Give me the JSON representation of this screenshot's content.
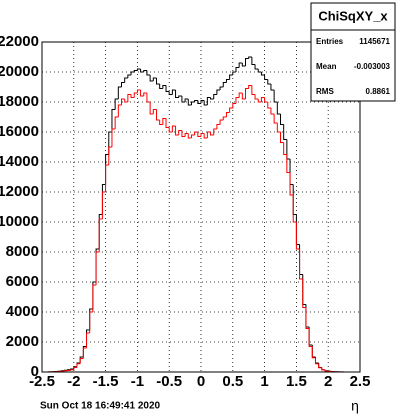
{
  "chart_data": {
    "type": "histogram",
    "title": "ChiSqXY_x",
    "stats": [
      {
        "label": "Entries",
        "value": "1145671"
      },
      {
        "label": "Mean",
        "value": "-0.003003"
      },
      {
        "label": "RMS",
        "value": "0.8861"
      }
    ],
    "x_label": "η",
    "timestamp": "Sun Oct 18 16:49:41 2020",
    "bins": [
      -2.5,
      -2.45,
      -2.4,
      -2.35,
      -2.3,
      -2.25,
      -2.2,
      -2.15,
      -2.1,
      -2.05,
      -2.0,
      -1.95,
      -1.9,
      -1.85,
      -1.8,
      -1.75,
      -1.7,
      -1.65,
      -1.6,
      -1.55,
      -1.5,
      -1.45,
      -1.4,
      -1.35,
      -1.3,
      -1.25,
      -1.2,
      -1.15,
      -1.1,
      -1.05,
      -1.0,
      -0.95,
      -0.9,
      -0.85,
      -0.8,
      -0.75,
      -0.7,
      -0.65,
      -0.6,
      -0.55,
      -0.5,
      -0.45,
      -0.4,
      -0.35,
      -0.3,
      -0.25,
      -0.2,
      -0.15,
      -0.1,
      -0.05,
      0,
      0.05,
      0.1,
      0.15,
      0.2,
      0.25,
      0.3,
      0.35,
      0.4,
      0.45,
      0.5,
      0.55,
      0.6,
      0.65,
      0.7,
      0.75,
      0.8,
      0.85,
      0.9,
      0.95,
      1.0,
      1.05,
      1.1,
      1.15,
      1.2,
      1.25,
      1.3,
      1.35,
      1.4,
      1.45,
      1.5,
      1.55,
      1.6,
      1.65,
      1.7,
      1.75,
      1.8,
      1.85,
      1.9,
      1.95,
      2.0,
      2.05,
      2.1,
      2.15,
      2.2,
      2.25,
      2.3,
      2.35,
      2.4,
      2.45,
      2.5
    ],
    "series": [
      {
        "color": "#000000",
        "values": [
          0,
          0,
          10,
          20,
          30,
          50,
          80,
          120,
          150,
          200,
          350,
          600,
          1000,
          1700,
          2800,
          4200,
          6000,
          8200,
          10500,
          12500,
          14500,
          16000,
          17500,
          18200,
          19000,
          19300,
          19600,
          19800,
          20000,
          20100,
          20200,
          20000,
          20100,
          19800,
          19400,
          19600,
          19200,
          18900,
          19100,
          18700,
          18500,
          18800,
          18300,
          18400,
          18000,
          18200,
          17800,
          18000,
          18100,
          17900,
          18100,
          17800,
          18300,
          18200,
          18500,
          18800,
          19000,
          19300,
          19500,
          19800,
          20000,
          20300,
          20600,
          20400,
          20900,
          21000,
          20500,
          20200,
          20000,
          19800,
          19500,
          19200,
          18800,
          18000,
          17200,
          16500,
          15500,
          14200,
          12500,
          10500,
          8500,
          6500,
          4500,
          3000,
          1800,
          1000,
          600,
          300,
          150,
          80,
          50,
          30,
          20,
          10,
          5,
          0,
          0,
          0,
          0,
          0
        ]
      },
      {
        "color": "#ff0000",
        "values": [
          0,
          0,
          5,
          10,
          20,
          30,
          50,
          80,
          100,
          150,
          300,
          550,
          900,
          1600,
          2600,
          4000,
          5800,
          8000,
          10200,
          12000,
          13800,
          15000,
          16200,
          17000,
          17800,
          18200,
          18000,
          18500,
          18300,
          18600,
          18800,
          18400,
          18600,
          18000,
          17200,
          17500,
          16800,
          16500,
          16900,
          16300,
          16000,
          16400,
          15800,
          16100,
          15700,
          15900,
          15600,
          15800,
          16000,
          15700,
          15900,
          15600,
          16000,
          15800,
          16200,
          16500,
          16800,
          17000,
          17300,
          17600,
          17900,
          18300,
          18600,
          18200,
          18900,
          19100,
          18500,
          18200,
          18000,
          18300,
          18000,
          17600,
          17200,
          16600,
          16000,
          15300,
          14500,
          13300,
          11800,
          10000,
          8200,
          6200,
          4300,
          2900,
          1700,
          950,
          550,
          280,
          140,
          70,
          40,
          25,
          15,
          8,
          4,
          0,
          0,
          0,
          0,
          0
        ]
      }
    ],
    "xlim": [
      -2.5,
      2.5
    ],
    "xticks": [
      -2.5,
      -2,
      -1.5,
      -1,
      -0.5,
      0,
      0.5,
      1,
      1.5,
      2,
      2.5
    ],
    "ylim": [
      0,
      22000
    ],
    "yticks": [
      0,
      2000,
      4000,
      6000,
      8000,
      10000,
      12000,
      14000,
      16000,
      18000,
      20000,
      22000
    ],
    "grid": true
  }
}
